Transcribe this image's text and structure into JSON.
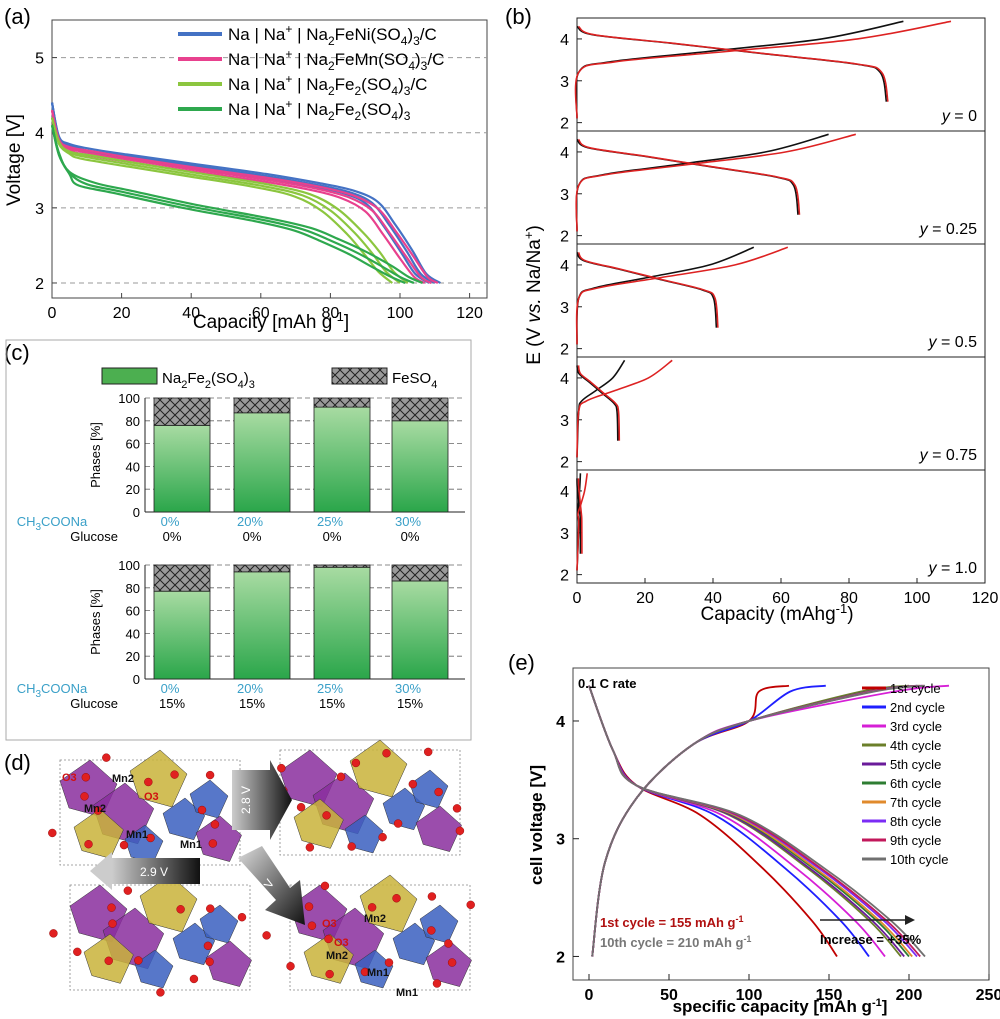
{
  "chart_data": [
    {
      "panel": "(a)",
      "type": "line",
      "xlabel": "Capacity [mAh g",
      "xlabel_sup": "-1",
      "xlabel_end": "]",
      "ylabel": "Voltage [V]",
      "xlim": [
        0,
        125
      ],
      "ylim": [
        1.8,
        5.5
      ],
      "xticks": [
        "0",
        "20",
        "40",
        "60",
        "80",
        "100",
        "120"
      ],
      "yticks": [
        "2",
        "3",
        "4",
        "5"
      ],
      "dashed_grid_y": [
        2,
        3,
        4,
        5
      ],
      "legend": [
        {
          "pre": "Na | Na",
          "sup": "+",
          "post": " | Na",
          "sub1": "2",
          "mid": "FeNi(SO",
          "sub2": "4",
          "end": ")",
          "sub3": "3",
          "tail": "/C",
          "color": "#4472c4"
        },
        {
          "pre": "Na | Na",
          "sup": "+",
          "post": " | Na",
          "sub1": "2",
          "mid": "FeMn(SO",
          "sub2": "4",
          "end": ")",
          "sub3": "3",
          "tail": "/C",
          "color": "#e8418e"
        },
        {
          "pre": "Na | Na",
          "sup": "+",
          "post": " | Na",
          "sub1": "2",
          "mid": "Fe",
          "sub1b": "2",
          "mid2": "(SO",
          "sub2": "4",
          "end": ")",
          "sub3": "3",
          "tail": "/C",
          "color": "#8cc63f"
        },
        {
          "pre": "Na | Na",
          "sup": "+",
          "post": " | Na",
          "sub1": "2",
          "mid": "Fe",
          "sub1b": "2",
          "mid2": "(SO",
          "sub2": "4",
          "end": ")",
          "sub3": "3",
          "tail": "",
          "color": "#2ea84e"
        }
      ],
      "series": [
        {
          "name": "Na2FeNi(SO4)3/C",
          "color": "#4472c4",
          "x": [
            0,
            2,
            5,
            10,
            20,
            40,
            60,
            75,
            85,
            92,
            97,
            102,
            106,
            110
          ],
          "y": [
            4.4,
            3.92,
            3.82,
            3.75,
            3.68,
            3.55,
            3.42,
            3.3,
            3.2,
            3.05,
            2.75,
            2.4,
            2.12,
            2.0
          ]
        },
        {
          "name": "Na2FeMn(SO4)3/C",
          "color": "#e8418e",
          "x": [
            0,
            2,
            5,
            10,
            20,
            40,
            60,
            75,
            85,
            92,
            97,
            102,
            106,
            109
          ],
          "y": [
            4.3,
            3.88,
            3.78,
            3.72,
            3.64,
            3.5,
            3.37,
            3.25,
            3.13,
            2.95,
            2.65,
            2.32,
            2.08,
            2.0
          ]
        },
        {
          "name": "Na2Fe2(SO4)3/C",
          "color": "#8cc63f",
          "x": [
            0,
            2,
            5,
            10,
            20,
            40,
            60,
            72,
            80,
            87,
            92,
            96,
            100
          ],
          "y": [
            4.2,
            3.85,
            3.72,
            3.66,
            3.58,
            3.43,
            3.28,
            3.15,
            2.95,
            2.65,
            2.38,
            2.15,
            2.0
          ]
        },
        {
          "name": "Na2Fe2(SO4)3",
          "color": "#2ea84e",
          "x": [
            0,
            2,
            5,
            10,
            20,
            40,
            60,
            72,
            80,
            88,
            95,
            100,
            104
          ],
          "y": [
            4.1,
            3.7,
            3.45,
            3.3,
            3.2,
            3.0,
            2.83,
            2.7,
            2.55,
            2.38,
            2.2,
            2.08,
            2.0
          ]
        }
      ]
    },
    {
      "panel": "(b)",
      "type": "line",
      "xlabel": "Capacity (mAhg",
      "xlabel_sup": "-1",
      "xlabel_end": ")",
      "ylabel_pre": "E (V ",
      "ylabel_it": "vs.",
      "ylabel_post": " Na/Na",
      "ylabel_sup": "+",
      "ylabel_end": ")",
      "xticks": [
        "0",
        "20",
        "40",
        "60",
        "80",
        "100",
        "120"
      ],
      "yticks": [
        "2",
        "3",
        "4"
      ],
      "xlim": [
        0,
        120
      ],
      "ylim": [
        1.8,
        4.5
      ],
      "subpanels": [
        {
          "y_label": "y",
          "y_value": " = 0",
          "discharge_end": 91,
          "charge_end": [
            96,
            110
          ]
        },
        {
          "y_label": "y",
          "y_value": " = 0.25",
          "discharge_end": 65,
          "charge_end": [
            74,
            82
          ]
        },
        {
          "y_label": "y",
          "y_value": " = 0.5",
          "discharge_end": 41,
          "charge_end": [
            52,
            62
          ]
        },
        {
          "y_label": "y",
          "y_value": " = 0.75",
          "discharge_end": 12,
          "charge_end": [
            14,
            28
          ]
        },
        {
          "y_label": "y",
          "y_value": " = 1.0",
          "discharge_end": 1,
          "charge_end": [
            1,
            3
          ]
        }
      ]
    },
    {
      "panel": "(c)",
      "type": "bar",
      "legend": [
        {
          "pre": "Na",
          "s1": "2",
          "mid": "Fe",
          "s2": "2",
          "mid2": "(SO",
          "s3": "4",
          "end": ")",
          "s4": "3",
          "color": "#4caf50"
        },
        {
          "pre": "FeSO",
          "s1": "4",
          "color": "#808080"
        }
      ],
      "ylabel": "Phases [%]",
      "yticks": [
        "0",
        "20",
        "40",
        "60",
        "80",
        "100"
      ],
      "row_label_1": "CH",
      "row_label_1_sub": "3",
      "row_label_1_end": "COONa",
      "row_label_2": "Glucose",
      "groups": [
        {
          "ch3coona": [
            "0%",
            "20%",
            "25%",
            "30%"
          ],
          "glucose": [
            "0%",
            "0%",
            "0%",
            "0%"
          ],
          "na2fe2": [
            76,
            87,
            92,
            80
          ],
          "feso4": [
            24,
            13,
            8,
            20
          ]
        },
        {
          "ch3coona": [
            "0%",
            "20%",
            "25%",
            "30%"
          ],
          "glucose": [
            "15%",
            "15%",
            "15%",
            "15%"
          ],
          "na2fe2": [
            77,
            94,
            98,
            86
          ],
          "feso4": [
            23,
            6,
            2,
            14
          ]
        }
      ]
    },
    {
      "panel": "(e)",
      "type": "line",
      "rate_label": "0.1 C rate",
      "xlabel": "specific capacity [mAh g",
      "xlabel_sup": "-1",
      "xlabel_end": "]",
      "ylabel": "cell voltage [V]",
      "xlim": [
        -10,
        250
      ],
      "ylim": [
        1.8,
        4.45
      ],
      "xticks": [
        "0",
        "50",
        "100",
        "150",
        "200",
        "250"
      ],
      "yticks": [
        "2",
        "3",
        "4"
      ],
      "annot1": "1st cycle = 155 mAh g",
      "annot1_sup": "-1",
      "annot2": "10th cycle = 210 mAh g",
      "annot2_sup": "-1",
      "increase": "Increase = +35%",
      "series": [
        {
          "name": "1st cycle",
          "color": "#c00000",
          "discharge_end": 155,
          "charge_end": 125
        },
        {
          "name": "2nd cycle",
          "color": "#1f1fff",
          "discharge_end": 175,
          "charge_end": 148
        },
        {
          "name": "3rd cycle",
          "color": "#d61fd6",
          "discharge_end": 185,
          "charge_end": 225
        },
        {
          "name": "4th cycle",
          "color": "#6b7f2a",
          "discharge_end": 195,
          "charge_end": 200
        },
        {
          "name": "5th cycle",
          "color": "#6a1b9a",
          "discharge_end": 197,
          "charge_end": 205
        },
        {
          "name": "6th cycle",
          "color": "#2e7d32",
          "discharge_end": 200,
          "charge_end": 206
        },
        {
          "name": "7th cycle",
          "color": "#e08a2c",
          "discharge_end": 202,
          "charge_end": 207
        },
        {
          "name": "8th cycle",
          "color": "#7b2cf5",
          "discharge_end": 205,
          "charge_end": 208
        },
        {
          "name": "9th cycle",
          "color": "#c2185b",
          "discharge_end": 207,
          "charge_end": 209
        },
        {
          "name": "10th cycle",
          "color": "#707070",
          "discharge_end": 210,
          "charge_end": 210
        }
      ]
    }
  ],
  "panels": {
    "a": "(a)",
    "b": "(b)",
    "c": "(c)",
    "d": "(d)",
    "e": "(e)"
  },
  "structure_d": {
    "arrow1": "2.8 V",
    "arrow2": "2.9 V",
    "arrow3": "3 V",
    "labels_tl": [
      "O3",
      "Mn2",
      "O3",
      "Mn2",
      "Mn1",
      "Mn1"
    ],
    "labels_br": [
      "O3",
      "Mn2",
      "O3",
      "Mn2",
      "Mn1",
      "Mn1"
    ]
  }
}
